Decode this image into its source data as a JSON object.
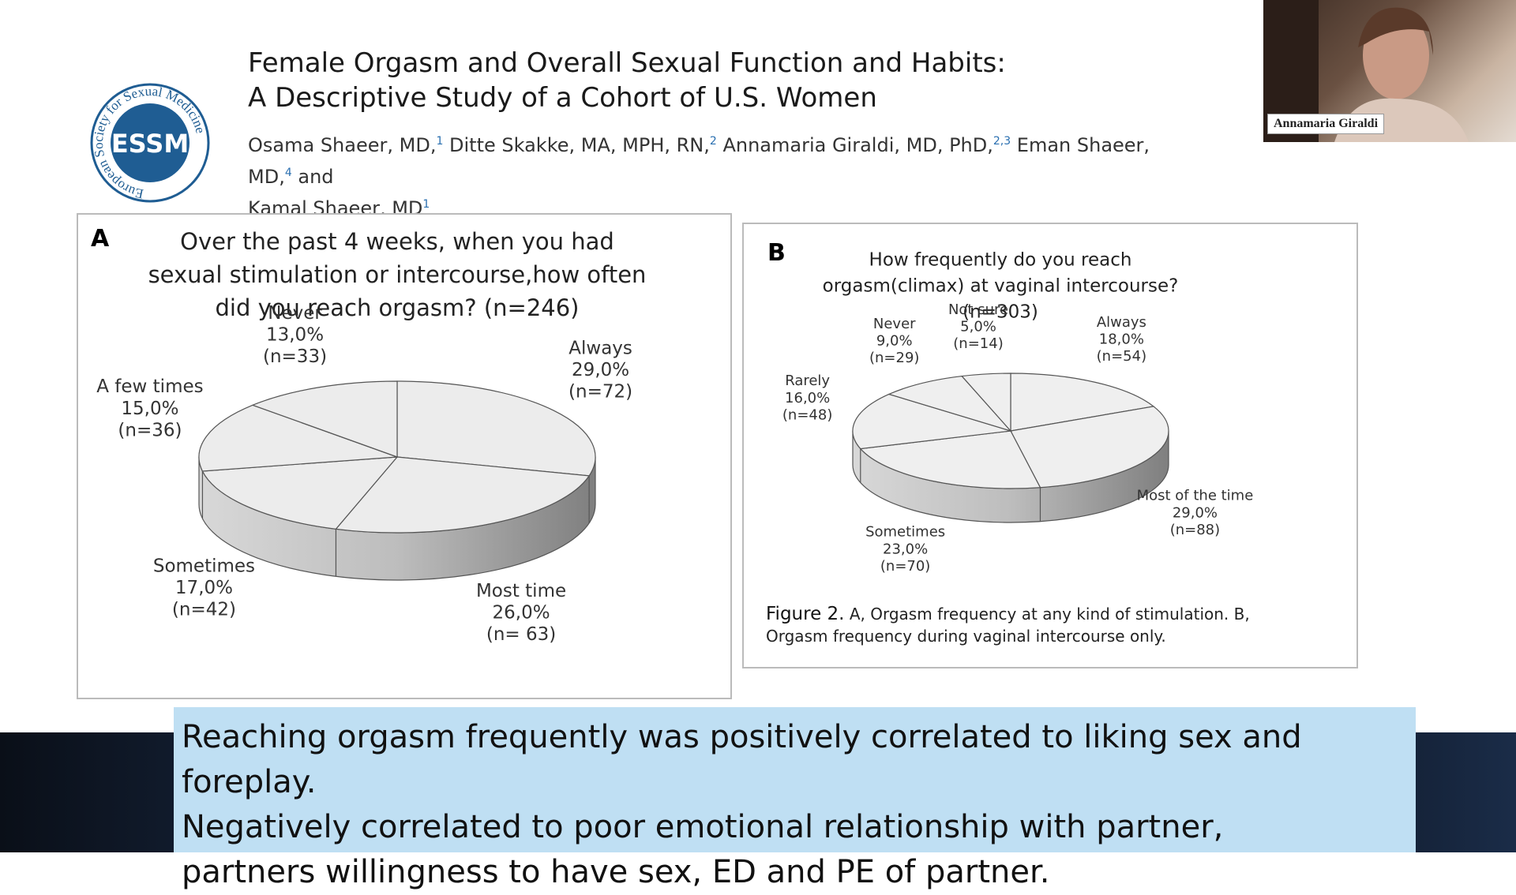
{
  "webcam": {
    "name": "Annamaria Giraldi"
  },
  "logo": {
    "initials": "ESSM",
    "ring": "European Society for Sexual Medicine"
  },
  "paper": {
    "title_lines": [
      "Female Orgasm and Overall Sexual Function and Habits:",
      "A Descriptive Study of a Cohort of U.S. Women"
    ],
    "authors": [
      {
        "name": "Osama Shaeer, MD,",
        "affiliation": "1"
      },
      {
        "name": "Ditte Skakke, MA, MPH, RN,",
        "affiliation": "2"
      },
      {
        "name": "Annamaria Giraldi, MD, PhD,",
        "affiliation": "2,3"
      },
      {
        "name": "Eman Shaeer, MD,",
        "affiliation": "4"
      },
      {
        "name": "Kamal Shaeer, MD",
        "affiliation": "1"
      }
    ],
    "conjunction": "and"
  },
  "chart_data": [
    {
      "type": "pie",
      "panel": "A",
      "title_lines": [
        "Over the past 4 weeks, when you had",
        "sexual stimulation or intercourse,how often",
        "did you reach orgasm? (n=246)"
      ],
      "categories": [
        "Always",
        "Most time",
        "Sometimes",
        "A few times",
        "Never"
      ],
      "values": [
        29,
        26,
        17,
        15,
        13
      ],
      "value_labels": [
        "29,0%",
        "26,0%",
        "17,0%",
        "15,0%",
        "13,0%"
      ],
      "count_labels": [
        "(n=72)",
        "(n= 63)",
        "(n=42)",
        "(n=36)",
        "(n=33)"
      ],
      "color": "#ececec"
    },
    {
      "type": "pie",
      "panel": "B",
      "title_lines": [
        "How frequently do you reach",
        "orgasm(climax) at vaginal intercourse?",
        "(n=303)"
      ],
      "categories": [
        "Always",
        "Most of the time",
        "Sometimes",
        "Rarely",
        "Never",
        "Not sure"
      ],
      "values": [
        18,
        29,
        23,
        16,
        9,
        5
      ],
      "value_labels": [
        "18,0%",
        "29,0%",
        "23,0%",
        "16,0%",
        "9,0%",
        "5,0%"
      ],
      "count_labels": [
        "(n=54)",
        "(n=88)",
        "(n=70)",
        "(n=48)",
        "(n=29)",
        "(n=14)"
      ],
      "color": "#efefef"
    }
  ],
  "figure_caption": {
    "label": "Figure 2.",
    "text_lines": [
      "A, Orgasm frequency at any kind of stimulation. B,",
      "Orgasm frequency during vaginal intercourse only."
    ]
  },
  "subtitle_lines": [
    "Reaching orgasm frequently was positively correlated to liking sex and foreplay.",
    "Negatively correlated to poor emotional relationship with partner,",
    "partners willingness to have sex, ED and PE of partner."
  ]
}
